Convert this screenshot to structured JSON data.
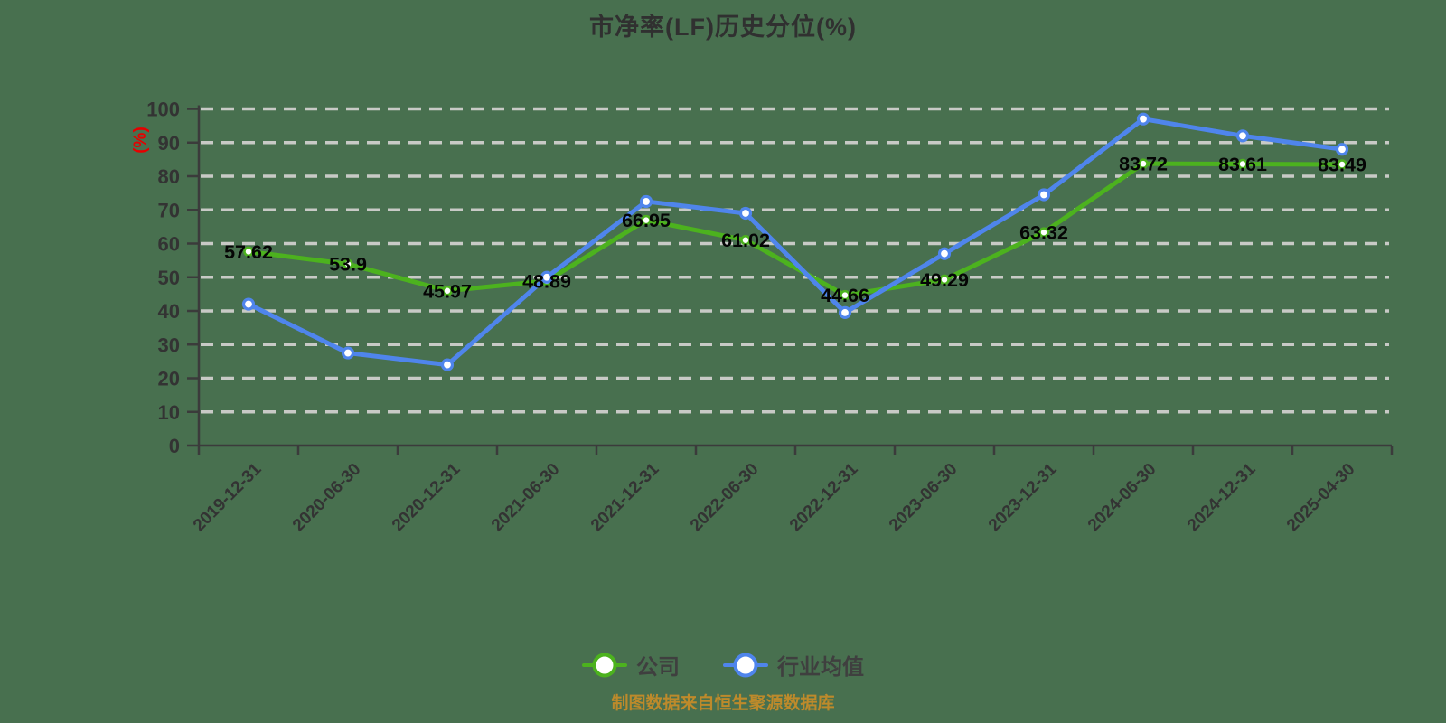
{
  "chart_data": {
    "type": "line",
    "title": "市净率(LF)历史分位(%)",
    "ylabel": "(%)",
    "footer": "制图数据来自恒生聚源数据库",
    "categories": [
      "2019-12-31",
      "2020-06-30",
      "2020-12-31",
      "2021-06-30",
      "2021-12-31",
      "2022-06-30",
      "2022-12-31",
      "2023-06-30",
      "2023-12-31",
      "2024-06-30",
      "2024-12-31",
      "2025-04-30"
    ],
    "series": [
      {
        "name": "公司",
        "color": "#4cb21e",
        "values": [
          57.62,
          53.9,
          45.97,
          48.89,
          66.95,
          61.02,
          44.66,
          49.29,
          63.32,
          83.72,
          83.61,
          83.49
        ],
        "show_labels": true
      },
      {
        "name": "行业均值",
        "color": "#4f85ec",
        "values": [
          42,
          27.5,
          24,
          50,
          72.5,
          69,
          39.5,
          57,
          74.5,
          97,
          92,
          88
        ],
        "show_labels": false
      }
    ],
    "ylim": [
      0,
      100
    ],
    "ytick_interval": 10,
    "grid": "horizontal-dashed",
    "legend_position": "bottom",
    "colors": {
      "background": "#48704F",
      "grid": "#c8cac6",
      "axis": "#3b3b3b",
      "tick_label": "#333333",
      "data_label": "#050505",
      "title": "#303030",
      "ylabel": "#e60000",
      "footer": "#bd8a2b"
    }
  }
}
